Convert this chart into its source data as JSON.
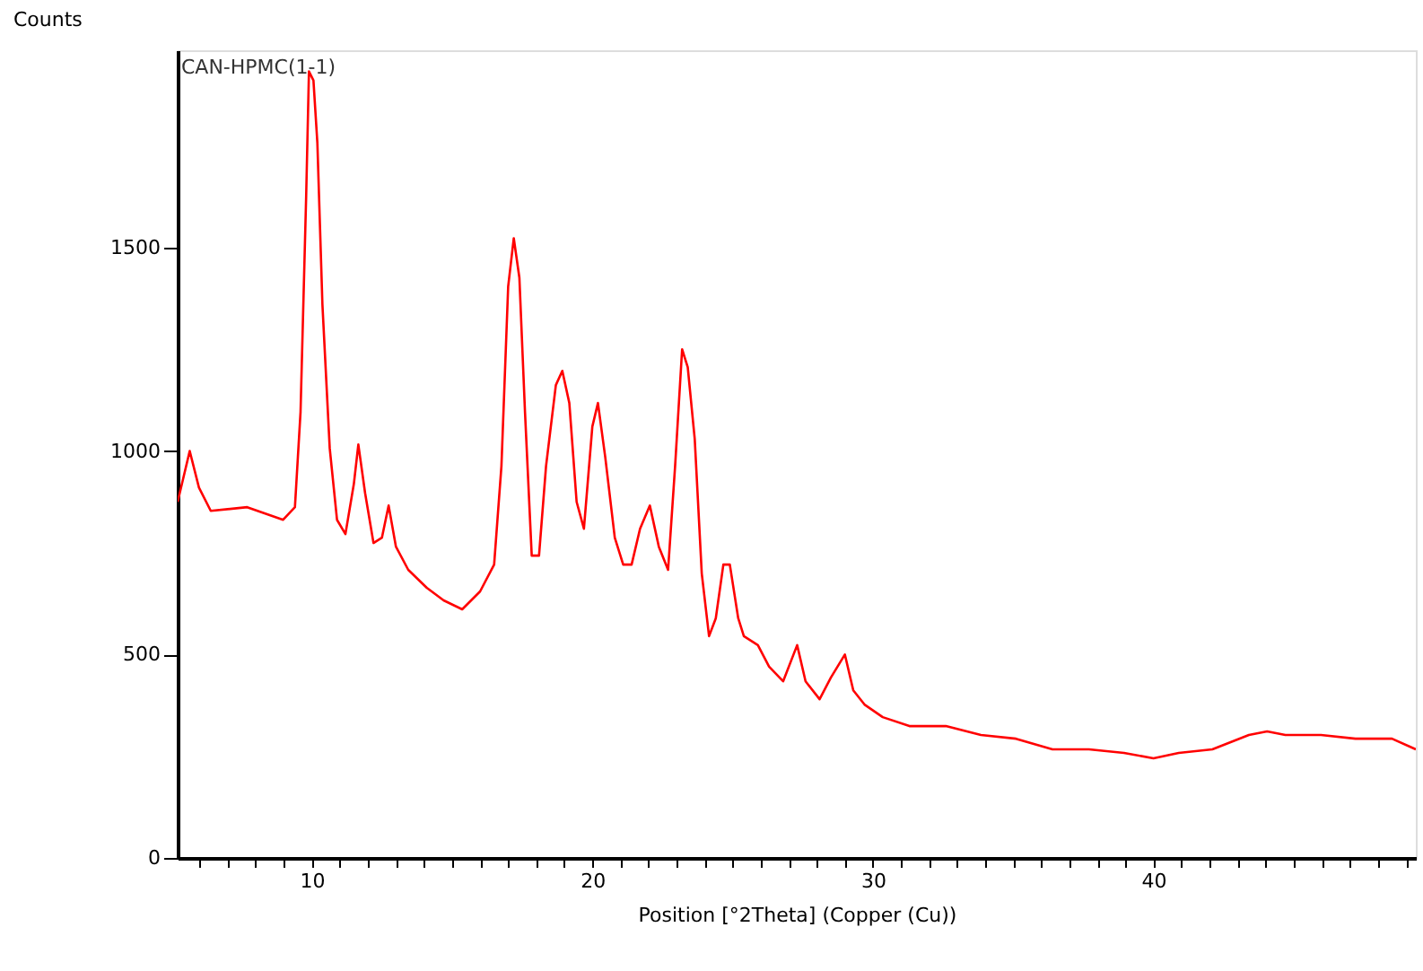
{
  "chart_data": {
    "type": "line",
    "xlabel": "Position [°2Theta] (Copper (Cu))",
    "ylabel": "Counts",
    "annotations": [
      "CAN-HPMC(1-1)"
    ],
    "xlim": [
      5.22,
      49.35
    ],
    "ylim": [
      0,
      1985
    ],
    "xticks": [
      {
        "value": 6,
        "label": null
      },
      {
        "value": 7,
        "label": null
      },
      {
        "value": 8,
        "label": null
      },
      {
        "value": 9,
        "label": null
      },
      10,
      {
        "value": 11,
        "label": null
      },
      {
        "value": 12,
        "label": null
      },
      {
        "value": 13,
        "label": null
      },
      {
        "value": 14,
        "label": null
      },
      {
        "value": 15,
        "label": null
      },
      {
        "value": 16,
        "label": null
      },
      {
        "value": 17,
        "label": null
      },
      {
        "value": 18,
        "label": null
      },
      {
        "value": 19,
        "label": null
      },
      20,
      {
        "value": 21,
        "label": null
      },
      {
        "value": 22,
        "label": null
      },
      {
        "value": 23,
        "label": null
      },
      {
        "value": 24,
        "label": null
      },
      {
        "value": 25,
        "label": null
      },
      {
        "value": 26,
        "label": null
      },
      {
        "value": 27,
        "label": null
      },
      {
        "value": 28,
        "label": null
      },
      {
        "value": 29,
        "label": null
      },
      30,
      {
        "value": 31,
        "label": null
      },
      {
        "value": 32,
        "label": null
      },
      {
        "value": 33,
        "label": null
      },
      {
        "value": 34,
        "label": null
      },
      {
        "value": 35,
        "label": null
      },
      {
        "value": 36,
        "label": null
      },
      {
        "value": 37,
        "label": null
      },
      {
        "value": 38,
        "label": null
      },
      {
        "value": 39,
        "label": null
      },
      40,
      {
        "value": 41,
        "label": null
      },
      {
        "value": 42,
        "label": null
      },
      {
        "value": 43,
        "label": null
      },
      {
        "value": 44,
        "label": null
      },
      {
        "value": 45,
        "label": null
      },
      {
        "value": 46,
        "label": null
      },
      {
        "value": 47,
        "label": null
      },
      {
        "value": 48,
        "label": null
      },
      {
        "value": 49,
        "label": null
      }
    ],
    "yticks": [
      0,
      500,
      1000,
      1500
    ],
    "grid": false,
    "marker": "none",
    "line_style": "solid",
    "series": [
      {
        "color": "#ff0000",
        "x": [
          5.22,
          5.65,
          5.98,
          6.4,
          7.7,
          8.98,
          9.4,
          9.6,
          9.8,
          9.9,
          10.06,
          10.2,
          10.38,
          10.64,
          10.9,
          11.2,
          11.5,
          11.66,
          11.9,
          12.2,
          12.5,
          12.74,
          13.0,
          13.44,
          14.1,
          14.7,
          15.36,
          16.0,
          16.5,
          16.76,
          17.0,
          17.2,
          17.4,
          17.6,
          17.84,
          18.1,
          18.35,
          18.7,
          18.93,
          19.18,
          19.44,
          19.7,
          20.0,
          20.2,
          20.46,
          20.8,
          21.1,
          21.4,
          21.7,
          22.05,
          22.37,
          22.7,
          22.95,
          23.2,
          23.4,
          23.65,
          23.9,
          24.16,
          24.4,
          24.67,
          24.9,
          25.2,
          25.4,
          25.9,
          26.3,
          26.8,
          27.3,
          27.6,
          28.1,
          28.5,
          29.0,
          29.3,
          29.7,
          30.35,
          31.3,
          32.6,
          33.85,
          35.1,
          36.4,
          37.7,
          38.95,
          40.0,
          40.9,
          42.1,
          43.4,
          44.05,
          44.7,
          45.97,
          47.2,
          48.5,
          49.35
        ],
        "values": [
          875,
          1000,
          910,
          853,
          862,
          831,
          862,
          1096,
          1625,
          1933,
          1911,
          1757,
          1360,
          1007,
          831,
          796,
          919,
          1016,
          897,
          774,
          787,
          866,
          765,
          708,
          664,
          633,
          611,
          655,
          721,
          963,
          1404,
          1523,
          1426,
          1096,
          743,
          743,
          963,
          1162,
          1197,
          1118,
          875,
          809,
          1060,
          1118,
          985,
          787,
          721,
          721,
          809,
          866,
          765,
          708,
          963,
          1250,
          1206,
          1029,
          699,
          545,
          589,
          721,
          721,
          589,
          545,
          523,
          470,
          434,
          523,
          434,
          390,
          443,
          500,
          412,
          377,
          346,
          324,
          324,
          302,
          293,
          267,
          267,
          258,
          245,
          258,
          267,
          302,
          311,
          302,
          302,
          293,
          293,
          267
        ]
      }
    ]
  }
}
